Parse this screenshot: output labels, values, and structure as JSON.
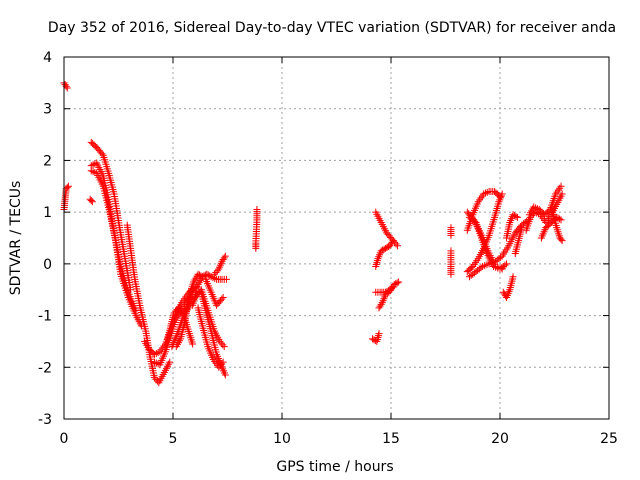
{
  "chart_data": {
    "type": "scatter",
    "title": "Day 352 of 2016, Sidereal Day-to-day VTEC variation (SDTVAR) for receiver anda",
    "xlabel": "GPS time / hours",
    "ylabel": "SDTVAR / TECUs",
    "xlim": [
      0,
      25
    ],
    "ylim": [
      -3,
      4
    ],
    "xticks": [
      0,
      5,
      10,
      15,
      20,
      25
    ],
    "yticks": [
      -3,
      -2,
      -1,
      0,
      1,
      2,
      3,
      4
    ],
    "grid": true,
    "marker": "+",
    "color": "#ff0000",
    "series": [
      {
        "name": "SDTVAR",
        "segments": [
          [
            [
              0.0,
              3.5
            ],
            [
              0.15,
              3.4
            ]
          ],
          [
            [
              0.0,
              1.05
            ],
            [
              0.05,
              1.25
            ],
            [
              0.1,
              1.45
            ],
            [
              0.2,
              1.5
            ]
          ],
          [
            [
              1.2,
              1.25
            ],
            [
              1.3,
              1.2
            ]
          ],
          [
            [
              1.25,
              1.8
            ],
            [
              1.5,
              1.75
            ],
            [
              1.8,
              1.5
            ],
            [
              2.1,
              1.0
            ],
            [
              2.35,
              0.5
            ],
            [
              2.6,
              -0.2
            ],
            [
              2.95,
              -0.65
            ],
            [
              3.3,
              -1.0
            ],
            [
              3.55,
              -1.2
            ]
          ],
          [
            [
              1.25,
              1.9
            ],
            [
              1.5,
              1.95
            ],
            [
              1.8,
              1.7
            ],
            [
              2.05,
              1.2
            ],
            [
              2.3,
              0.6
            ],
            [
              2.6,
              -0.05
            ],
            [
              2.9,
              -0.5
            ],
            [
              3.3,
              -0.9
            ]
          ],
          [
            [
              1.25,
              2.35
            ],
            [
              1.5,
              2.25
            ],
            [
              1.8,
              2.1
            ],
            [
              2.05,
              1.75
            ],
            [
              2.3,
              1.35
            ],
            [
              2.55,
              0.7
            ],
            [
              2.8,
              0.1
            ],
            [
              3.05,
              -0.5
            ]
          ],
          [
            [
              2.9,
              0.75
            ],
            [
              3.05,
              0.3
            ],
            [
              3.25,
              -0.3
            ],
            [
              3.5,
              -0.85
            ],
            [
              3.75,
              -1.3
            ],
            [
              3.95,
              -1.8
            ],
            [
              4.15,
              -2.2
            ],
            [
              4.35,
              -2.3
            ],
            [
              4.6,
              -2.1
            ],
            [
              4.85,
              -1.9
            ]
          ],
          [
            [
              3.7,
              -1.5
            ],
            [
              3.9,
              -1.65
            ],
            [
              4.15,
              -1.75
            ],
            [
              4.4,
              -1.7
            ],
            [
              4.65,
              -1.55
            ],
            [
              4.9,
              -1.3
            ],
            [
              5.15,
              -1.05
            ],
            [
              5.4,
              -0.9
            ],
            [
              5.65,
              -0.75
            ],
            [
              5.9,
              -0.55
            ],
            [
              6.15,
              -0.4
            ],
            [
              6.35,
              -0.25
            ],
            [
              6.55,
              -0.2
            ],
            [
              6.75,
              -0.25
            ],
            [
              7.0,
              -0.3
            ],
            [
              7.25,
              -0.3
            ],
            [
              7.45,
              -0.3
            ]
          ],
          [
            [
              4.15,
              -1.9
            ],
            [
              4.4,
              -1.95
            ],
            [
              4.65,
              -1.7
            ],
            [
              4.9,
              -1.35
            ],
            [
              5.15,
              -0.95
            ],
            [
              5.4,
              -0.75
            ],
            [
              5.65,
              -0.6
            ],
            [
              5.85,
              -0.5
            ],
            [
              6.1,
              -0.45
            ]
          ],
          [
            [
              4.75,
              -1.45
            ],
            [
              4.9,
              -1.2
            ],
            [
              5.05,
              -0.95
            ],
            [
              5.25,
              -0.85
            ],
            [
              5.5,
              -1.0
            ],
            [
              5.75,
              -1.35
            ],
            [
              5.9,
              -1.55
            ]
          ],
          [
            [
              4.95,
              -1.6
            ],
            [
              5.2,
              -1.35
            ],
            [
              5.45,
              -1.05
            ],
            [
              5.7,
              -0.85
            ],
            [
              6.0,
              -0.65
            ],
            [
              6.3,
              -0.5
            ],
            [
              6.6,
              -0.9
            ],
            [
              6.9,
              -1.3
            ],
            [
              7.15,
              -1.5
            ],
            [
              7.35,
              -1.6
            ]
          ],
          [
            [
              5.15,
              -1.6
            ],
            [
              5.35,
              -1.45
            ],
            [
              5.55,
              -1.1
            ],
            [
              5.75,
              -0.6
            ],
            [
              5.95,
              -0.35
            ],
            [
              6.15,
              -0.2
            ],
            [
              6.35,
              -0.25
            ]
          ],
          [
            [
              5.9,
              -0.8
            ],
            [
              6.1,
              -0.55
            ],
            [
              6.3,
              -0.55
            ],
            [
              6.5,
              -0.9
            ],
            [
              6.75,
              -1.3
            ],
            [
              7.0,
              -1.75
            ],
            [
              7.2,
              -1.95
            ],
            [
              7.4,
              -2.15
            ]
          ],
          [
            [
              6.15,
              -0.85
            ],
            [
              6.35,
              -1.2
            ],
            [
              6.6,
              -1.6
            ],
            [
              6.85,
              -1.85
            ],
            [
              7.1,
              -2.0
            ],
            [
              7.3,
              -1.9
            ]
          ],
          [
            [
              6.5,
              -0.3
            ],
            [
              6.75,
              -0.55
            ],
            [
              7.0,
              -0.8
            ],
            [
              7.3,
              -0.65
            ]
          ],
          [
            [
              6.9,
              -0.2
            ],
            [
              7.1,
              -0.1
            ],
            [
              7.25,
              0.05
            ],
            [
              7.4,
              0.15
            ]
          ],
          [
            [
              8.85,
              1.05
            ],
            [
              8.85,
              0.85
            ],
            [
              8.8,
              0.4
            ],
            [
              8.8,
              0.3
            ]
          ],
          [
            [
              14.3,
              1.0
            ],
            [
              14.55,
              0.8
            ],
            [
              14.8,
              0.6
            ],
            [
              15.1,
              0.45
            ],
            [
              15.3,
              0.35
            ]
          ],
          [
            [
              14.3,
              -0.05
            ],
            [
              14.4,
              0.1
            ],
            [
              14.55,
              0.25
            ],
            [
              14.75,
              0.3
            ],
            [
              14.95,
              0.35
            ],
            [
              15.1,
              0.45
            ]
          ],
          [
            [
              14.3,
              -0.55
            ],
            [
              14.5,
              -0.55
            ],
            [
              14.75,
              -0.55
            ],
            [
              14.95,
              -0.5
            ],
            [
              15.15,
              -0.4
            ],
            [
              15.35,
              -0.35
            ]
          ],
          [
            [
              14.45,
              -0.85
            ],
            [
              14.6,
              -0.75
            ],
            [
              14.75,
              -0.6
            ],
            [
              14.9,
              -0.55
            ],
            [
              15.1,
              -0.45
            ]
          ],
          [
            [
              14.15,
              -1.45
            ],
            [
              14.35,
              -1.5
            ],
            [
              14.45,
              -1.35
            ]
          ],
          [
            [
              17.75,
              0.7
            ],
            [
              17.75,
              0.55
            ]
          ],
          [
            [
              17.75,
              0.25
            ],
            [
              17.75,
              -0.05
            ],
            [
              17.75,
              -0.2
            ]
          ],
          [
            [
              18.5,
              -0.15
            ],
            [
              18.75,
              -0.05
            ],
            [
              19.0,
              0.1
            ],
            [
              19.25,
              0.3
            ],
            [
              19.5,
              0.55
            ],
            [
              19.75,
              0.9
            ],
            [
              19.95,
              1.2
            ],
            [
              20.1,
              1.35
            ]
          ],
          [
            [
              18.5,
              0.65
            ],
            [
              18.75,
              0.95
            ],
            [
              19.0,
              1.2
            ],
            [
              19.25,
              1.35
            ],
            [
              19.5,
              1.4
            ],
            [
              19.75,
              1.4
            ],
            [
              20.0,
              1.3
            ]
          ],
          [
            [
              18.5,
              1.0
            ],
            [
              18.8,
              0.85
            ],
            [
              19.1,
              0.6
            ],
            [
              19.45,
              0.25
            ],
            [
              19.8,
              -0.05
            ],
            [
              20.1,
              -0.1
            ]
          ],
          [
            [
              18.6,
              0.9
            ],
            [
              18.9,
              0.8
            ],
            [
              19.15,
              0.5
            ],
            [
              19.4,
              0.2
            ],
            [
              19.7,
              -0.05
            ],
            [
              20.0,
              -0.1
            ],
            [
              20.3,
              0.0
            ]
          ],
          [
            [
              18.6,
              -0.25
            ],
            [
              18.9,
              -0.15
            ],
            [
              19.2,
              -0.05
            ],
            [
              19.5,
              0.0
            ],
            [
              19.8,
              0.05
            ],
            [
              20.1,
              0.15
            ],
            [
              20.4,
              0.35
            ],
            [
              20.7,
              0.6
            ],
            [
              21.0,
              0.75
            ],
            [
              21.3,
              0.85
            ]
          ],
          [
            [
              20.15,
              -0.55
            ],
            [
              20.3,
              -0.65
            ],
            [
              20.45,
              -0.5
            ],
            [
              20.6,
              -0.25
            ]
          ],
          [
            [
              20.3,
              0.5
            ],
            [
              20.45,
              0.8
            ],
            [
              20.6,
              0.95
            ],
            [
              20.8,
              0.9
            ]
          ],
          [
            [
              20.7,
              0.2
            ],
            [
              20.85,
              0.45
            ],
            [
              21.0,
              0.7
            ]
          ],
          [
            [
              21.2,
              0.65
            ],
            [
              21.4,
              0.9
            ],
            [
              21.6,
              1.0
            ],
            [
              21.85,
              0.95
            ],
            [
              22.1,
              0.8
            ],
            [
              22.35,
              0.95
            ],
            [
              22.6,
              1.15
            ],
            [
              22.85,
              1.35
            ]
          ],
          [
            [
              21.35,
              0.95
            ],
            [
              21.55,
              1.1
            ],
            [
              21.8,
              1.05
            ],
            [
              22.05,
              0.95
            ],
            [
              22.3,
              1.05
            ],
            [
              22.55,
              1.35
            ],
            [
              22.8,
              1.5
            ]
          ],
          [
            [
              21.9,
              0.5
            ],
            [
              22.1,
              0.7
            ],
            [
              22.35,
              0.8
            ],
            [
              22.6,
              0.9
            ],
            [
              22.8,
              0.85
            ]
          ],
          [
            [
              22.4,
              1.0
            ],
            [
              22.6,
              0.7
            ],
            [
              22.75,
              0.5
            ],
            [
              22.85,
              0.45
            ]
          ]
        ]
      }
    ]
  }
}
